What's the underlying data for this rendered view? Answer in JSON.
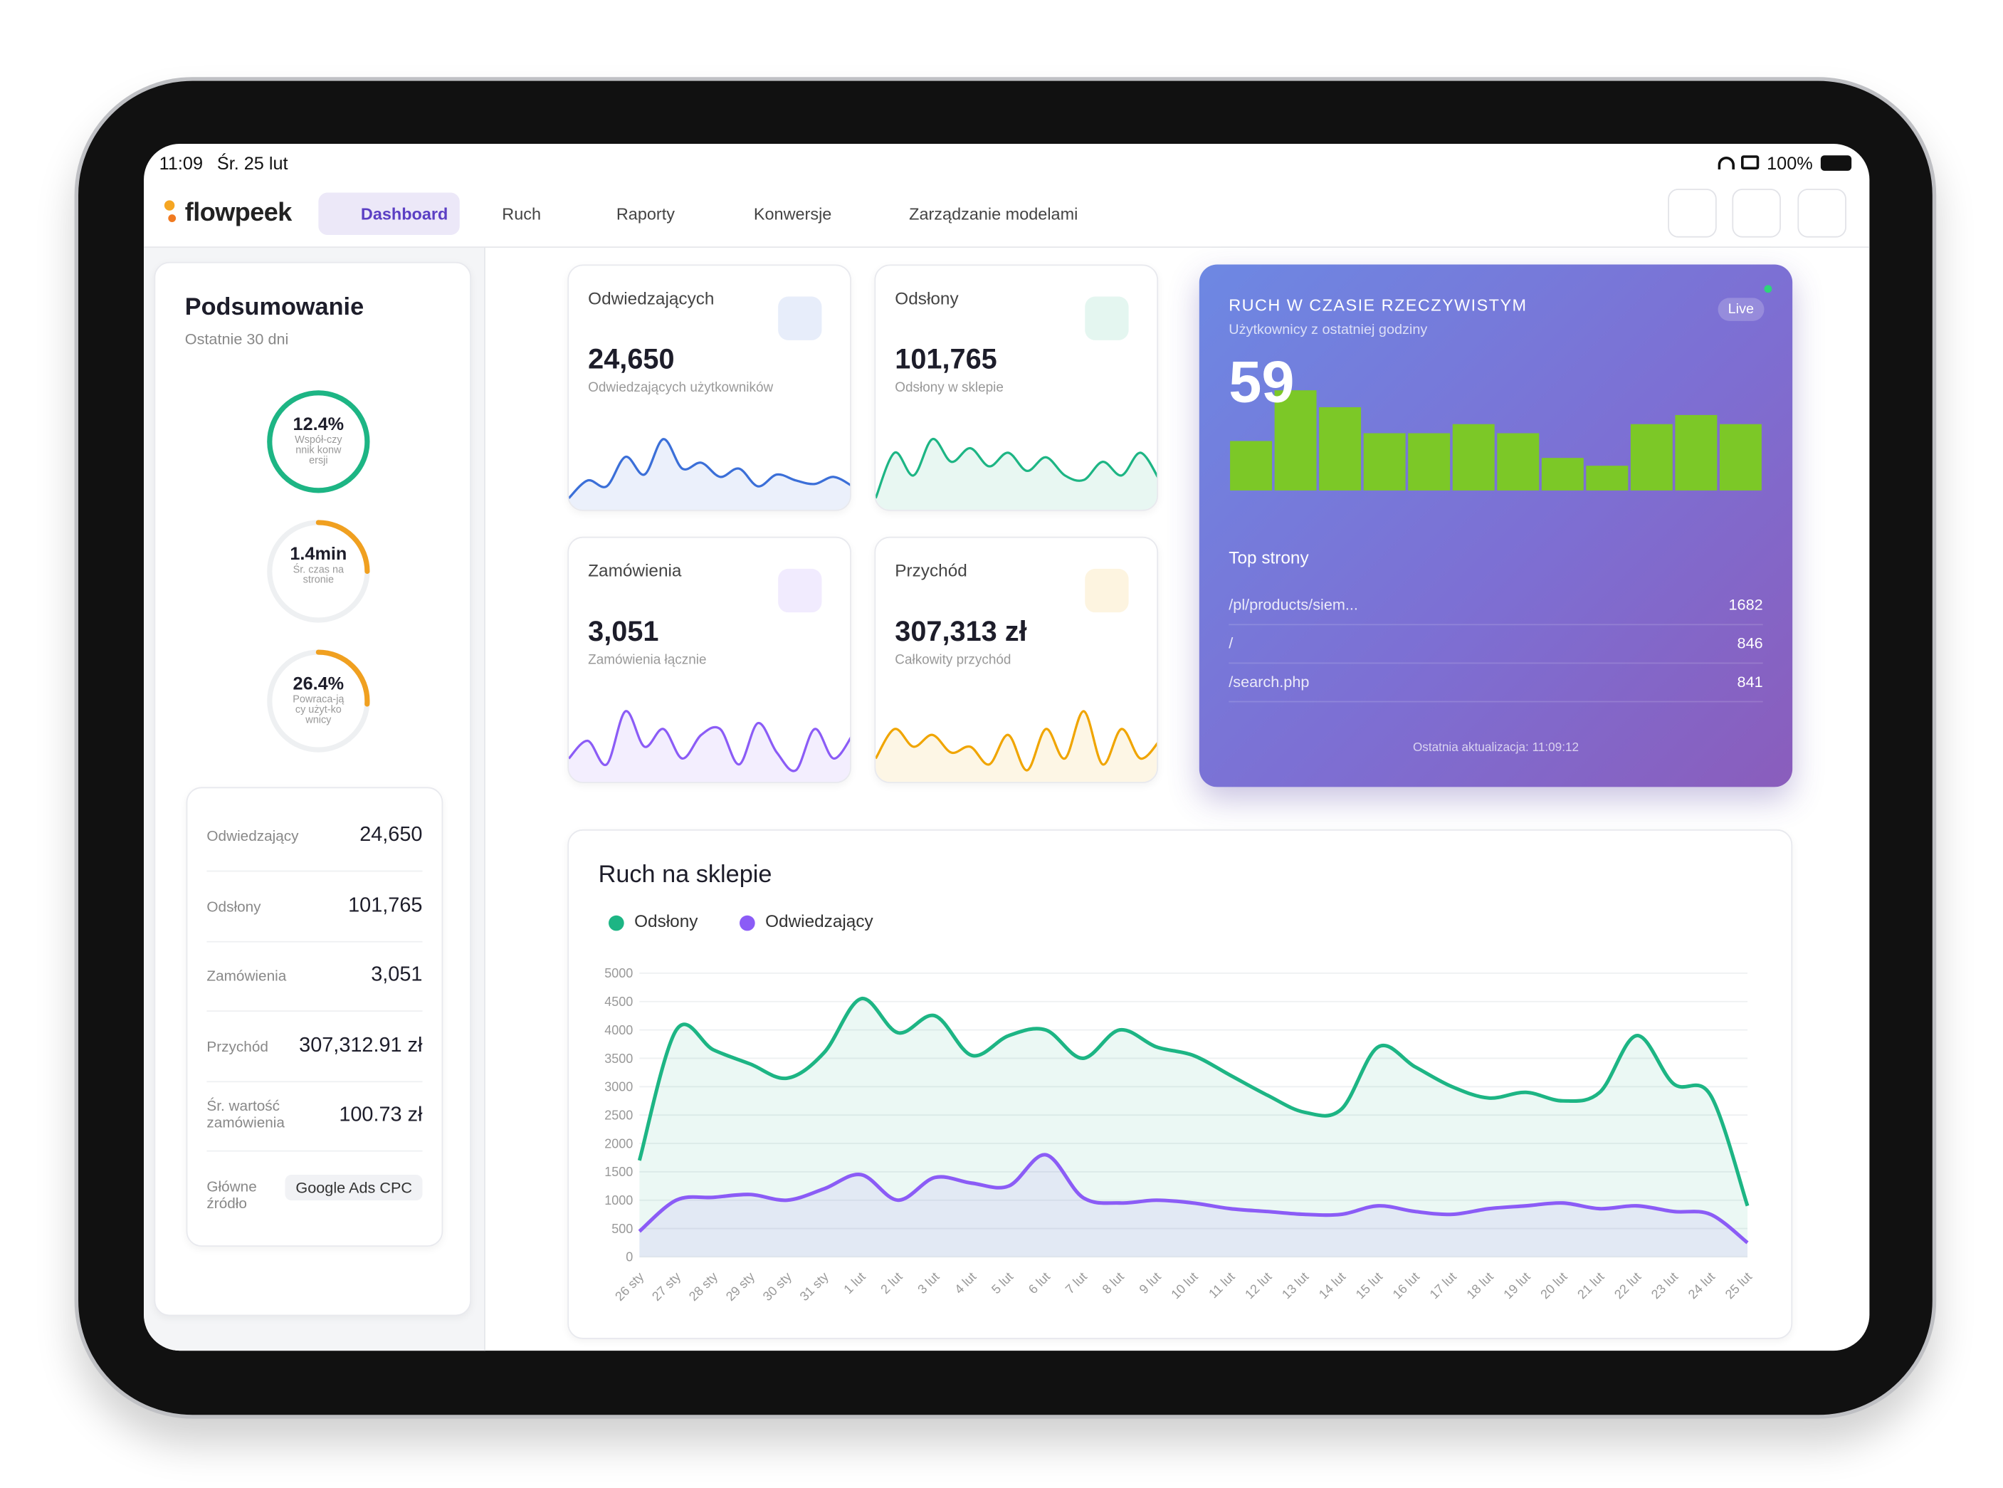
{
  "status_bar": {
    "time": "11:09",
    "date": "Śr. 25 lut",
    "battery": "100%"
  },
  "nav": {
    "logo": "flowpeek",
    "items": [
      "Dashboard",
      "Ruch",
      "Raporty",
      "Konwersje",
      "Zarządzanie modelami"
    ]
  },
  "summary": {
    "title": "Podsumowanie",
    "subtitle": "Ostatnie 30 dni",
    "rings": [
      {
        "value": "12.4%",
        "label": "Współ-czynnik konwersji",
        "progress": 100,
        "color": "#1db584"
      },
      {
        "value": "1.4min",
        "label": "Śr. czas na stronie",
        "progress": 25,
        "color": "#f0a020"
      },
      {
        "value": "26.4%",
        "label": "Powraca-jący użyt-kownicy",
        "progress": 26,
        "color": "#f0a020"
      }
    ],
    "rows": [
      {
        "label": "Odwiedzający",
        "value": "24,650"
      },
      {
        "label": "Odsłony",
        "value": "101,765"
      },
      {
        "label": "Zamówienia",
        "value": "3,051"
      },
      {
        "label": "Przychód",
        "value": "307,312.91 zł"
      },
      {
        "label": "Śr. wartość zamówienia",
        "value": "100.73 zł"
      },
      {
        "label": "Główne źródło",
        "value": "Google Ads CPC"
      }
    ]
  },
  "kpis": [
    {
      "title": "Odwiedzających",
      "value": "24,650",
      "caption": "Odwiedzających użytkowników",
      "color": "#3b6fd8",
      "sparkline": [
        20,
        35,
        30,
        55,
        40,
        70,
        45,
        50,
        38,
        45,
        30,
        40,
        35,
        32,
        38,
        30
      ]
    },
    {
      "title": "Odsłony",
      "value": "101,765",
      "caption": "Odsłony w sklepie",
      "color": "#1db584",
      "sparkline": [
        10,
        60,
        35,
        75,
        50,
        65,
        45,
        60,
        40,
        55,
        35,
        30,
        50,
        35,
        60,
        30
      ]
    },
    {
      "title": "Zamówienia",
      "value": "3,051",
      "caption": "Zamówienia łącznie",
      "color": "#8b5cf6",
      "sparkline": [
        30,
        45,
        25,
        70,
        40,
        55,
        30,
        50,
        55,
        25,
        60,
        35,
        20,
        55,
        30,
        50
      ]
    },
    {
      "title": "Przychód",
      "value": "307,313 zł",
      "caption": "Całkowity przychód",
      "color": "#f0a500",
      "sparkline": [
        30,
        55,
        40,
        50,
        35,
        40,
        25,
        50,
        20,
        55,
        30,
        70,
        25,
        55,
        30,
        45
      ]
    }
  ],
  "realtime": {
    "title": "RUCH W CZASIE RZECZYWISTYM",
    "subtitle": "Użytkownicy z ostatniej godziny",
    "badge": "Live",
    "count": 59,
    "bars": [
      38,
      77,
      64,
      44,
      44,
      51,
      44,
      25,
      19,
      51,
      58,
      51
    ],
    "top_title": "Top strony",
    "top_pages": [
      {
        "page": "/pl/products/siem...",
        "views": 1682
      },
      {
        "page": "/",
        "views": 846
      },
      {
        "page": "/search.php",
        "views": 841
      }
    ],
    "updated": "Ostatnia aktualizacja: 11:09:12"
  },
  "chart_data": {
    "type": "line",
    "title": "Ruch na sklepie",
    "categories": [
      "26 sty",
      "27 sty",
      "28 sty",
      "29 sty",
      "30 sty",
      "31 sty",
      "1 lut",
      "2 lut",
      "3 lut",
      "4 lut",
      "5 lut",
      "6 lut",
      "7 lut",
      "8 lut",
      "9 lut",
      "10 lut",
      "11 lut",
      "12 lut",
      "13 lut",
      "14 lut",
      "15 lut",
      "16 lut",
      "17 lut",
      "18 lut",
      "19 lut",
      "20 lut",
      "21 lut",
      "22 lut",
      "23 lut",
      "24 lut",
      "25 lut"
    ],
    "series": [
      {
        "name": "Odsłony",
        "color": "#1db584",
        "values": [
          1700,
          4000,
          3650,
          3400,
          3150,
          3600,
          4550,
          3950,
          4250,
          3550,
          3900,
          4000,
          3500,
          4000,
          3700,
          3550,
          3200,
          2850,
          2550,
          2600,
          3700,
          3350,
          3000,
          2800,
          2900,
          2750,
          2900,
          3900,
          3050,
          2850,
          900
        ]
      },
      {
        "name": "Odwiedzający",
        "color": "#8b5cf6",
        "values": [
          450,
          1000,
          1050,
          1100,
          1000,
          1200,
          1450,
          1000,
          1400,
          1300,
          1250,
          1800,
          1050,
          950,
          1000,
          950,
          850,
          800,
          750,
          750,
          900,
          800,
          750,
          850,
          900,
          950,
          850,
          900,
          800,
          750,
          250
        ]
      }
    ],
    "ylim": [
      0,
      5000
    ],
    "yticks": [
      0,
      500,
      1000,
      1500,
      2000,
      2500,
      3000,
      3500,
      4000,
      4500,
      5000
    ],
    "grid": true
  }
}
